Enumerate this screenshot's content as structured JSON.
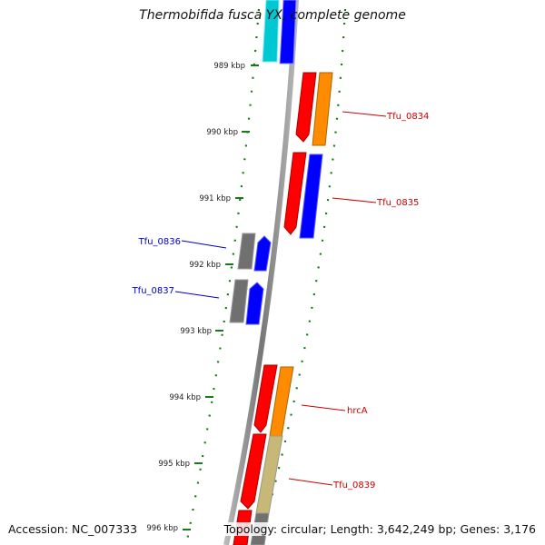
{
  "title": "Thermobifida fusca YX, complete genome",
  "footer": {
    "accession": "Accession: NC_007333",
    "summary": "Topology: circular; Length: 3,642,249 bp; Genes: 3,176"
  },
  "ticks": [
    "989 kbp",
    "990 kbp",
    "991 kbp",
    "992 kbp",
    "993 kbp",
    "994 kbp",
    "995 kbp",
    "996 kbp"
  ],
  "gene_labels": {
    "right": [
      "Tfu_0834",
      "Tfu_0835",
      "hrcA",
      "Tfu_0839"
    ],
    "left": [
      "Tfu_0836",
      "Tfu_0837"
    ]
  },
  "colors": {
    "forward": "#ff0000",
    "reverse": "#0000ff",
    "orange": "#ff8c00",
    "cyan": "#00c8d2",
    "gray": "#707070",
    "olive": "#c8b878",
    "tick": "#1a7a1a",
    "label_red": "#cc0000",
    "label_blue": "#0000cc",
    "backbone": "#808080"
  }
}
